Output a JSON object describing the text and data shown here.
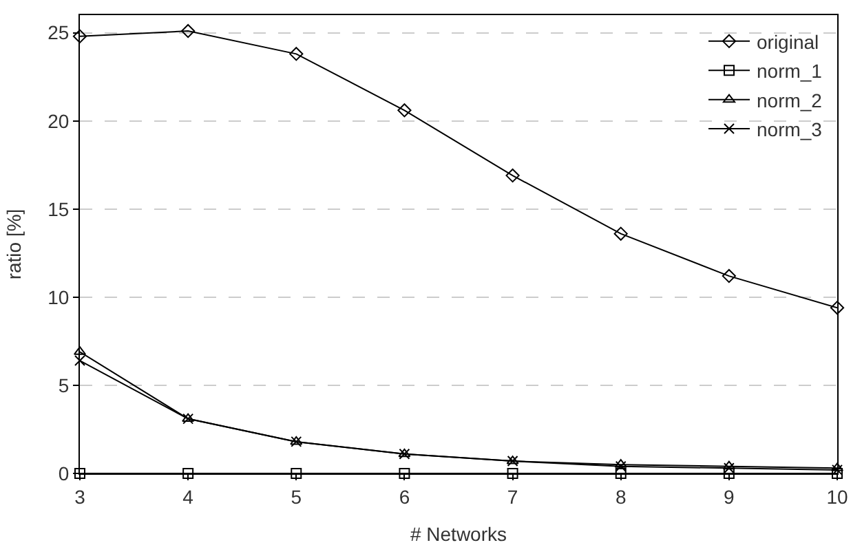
{
  "chart_data": {
    "type": "line",
    "xlabel": "# Networks",
    "ylabel": "ratio [%]",
    "x": [
      3,
      4,
      5,
      6,
      7,
      8,
      9,
      10
    ],
    "xlim": [
      3,
      10
    ],
    "xticks": [
      3,
      4,
      5,
      6,
      7,
      8,
      9,
      10
    ],
    "ylim": [
      0,
      26
    ],
    "yticks": [
      0,
      5,
      10,
      15,
      20,
      25
    ],
    "grid": "y",
    "legend": "top right",
    "line_style": "solid",
    "series": [
      {
        "name": "original",
        "color": "#000000",
        "marker": "diamond",
        "values": [
          24.8,
          25.1,
          23.8,
          20.6,
          16.9,
          13.6,
          11.2,
          9.4
        ]
      },
      {
        "name": "norm_1",
        "color": "#000000",
        "marker": "square",
        "values": [
          0,
          0,
          0,
          0,
          0,
          0,
          0,
          0
        ]
      },
      {
        "name": "norm_2",
        "color": "#000000",
        "marker": "triangle",
        "values": [
          6.9,
          3.1,
          1.8,
          1.1,
          0.7,
          0.5,
          0.4,
          0.3
        ]
      },
      {
        "name": "norm_3",
        "color": "#000000",
        "marker": "cross",
        "values": [
          6.4,
          3.1,
          1.8,
          1.1,
          0.7,
          0.4,
          0.3,
          0.2
        ]
      }
    ]
  }
}
